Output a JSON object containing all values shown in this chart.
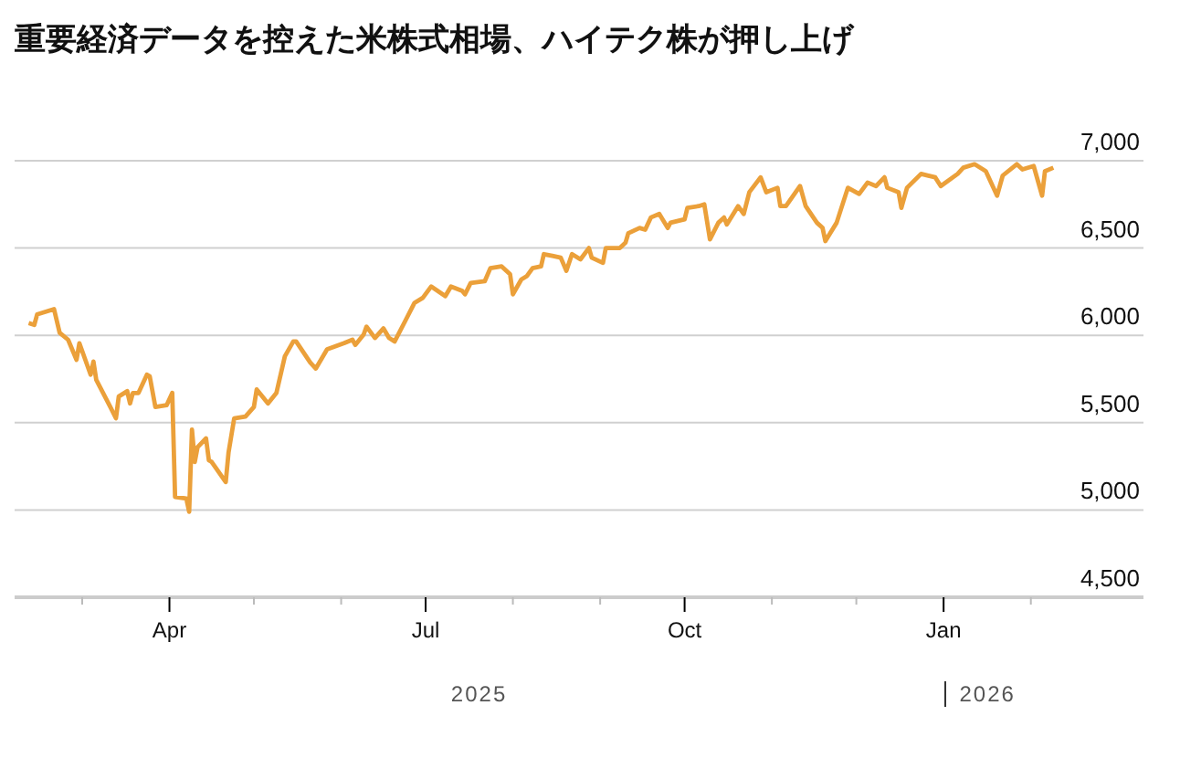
{
  "chart_data": {
    "type": "line",
    "title": "重要経済データを控えた米株式相場、ハイテク株が押し上げ",
    "x": [
      "2025-02-10",
      "2025-02-12",
      "2025-02-13",
      "2025-02-19",
      "2025-02-21",
      "2025-02-24",
      "2025-02-27",
      "2025-02-28",
      "2025-03-04",
      "2025-03-05",
      "2025-03-06",
      "2025-03-11",
      "2025-03-13",
      "2025-03-14",
      "2025-03-17",
      "2025-03-18",
      "2025-03-19",
      "2025-03-21",
      "2025-03-24",
      "2025-03-25",
      "2025-03-27",
      "2025-03-31",
      "2025-04-02",
      "2025-04-03",
      "2025-04-07",
      "2025-04-08",
      "2025-04-09",
      "2025-04-10",
      "2025-04-11",
      "2025-04-14",
      "2025-04-15",
      "2025-04-16",
      "2025-04-21",
      "2025-04-22",
      "2025-04-24",
      "2025-04-28",
      "2025-05-01",
      "2025-05-02",
      "2025-05-06",
      "2025-05-09",
      "2025-05-12",
      "2025-05-15",
      "2025-05-16",
      "2025-05-21",
      "2025-05-23",
      "2025-05-27",
      "2025-06-02",
      "2025-06-05",
      "2025-06-06",
      "2025-06-09",
      "2025-06-10",
      "2025-06-13",
      "2025-06-16",
      "2025-06-18",
      "2025-06-20",
      "2025-06-24",
      "2025-06-27",
      "2025-06-30",
      "2025-07-03",
      "2025-07-08",
      "2025-07-10",
      "2025-07-14",
      "2025-07-15",
      "2025-07-17",
      "2025-07-22",
      "2025-07-24",
      "2025-07-28",
      "2025-07-31",
      "2025-08-01",
      "2025-08-04",
      "2025-08-06",
      "2025-08-08",
      "2025-08-11",
      "2025-08-12",
      "2025-08-15",
      "2025-08-18",
      "2025-08-20",
      "2025-08-22",
      "2025-08-25",
      "2025-08-28",
      "2025-08-29",
      "2025-09-02",
      "2025-09-03",
      "2025-09-08",
      "2025-09-10",
      "2025-09-11",
      "2025-09-15",
      "2025-09-17",
      "2025-09-19",
      "2025-09-22",
      "2025-09-25",
      "2025-09-26",
      "2025-10-01",
      "2025-10-02",
      "2025-10-06",
      "2025-10-08",
      "2025-10-10",
      "2025-10-13",
      "2025-10-15",
      "2025-10-16",
      "2025-10-20",
      "2025-10-22",
      "2025-10-24",
      "2025-10-28",
      "2025-10-30",
      "2025-11-03",
      "2025-11-04",
      "2025-11-06",
      "2025-11-11",
      "2025-11-13",
      "2025-11-17",
      "2025-11-19",
      "2025-11-20",
      "2025-11-24",
      "2025-11-28",
      "2025-12-02",
      "2025-12-05",
      "2025-12-08",
      "2025-12-11",
      "2025-12-12",
      "2025-12-16",
      "2025-12-17",
      "2025-12-19",
      "2025-12-24",
      "2025-12-29",
      "2025-12-31",
      "2026-01-06",
      "2026-01-08",
      "2026-01-12",
      "2026-01-15",
      "2026-01-16",
      "2026-01-20",
      "2026-01-22",
      "2026-01-27",
      "2026-01-29",
      "2026-02-02",
      "2026-02-05",
      "2026-02-06",
      "2026-02-09"
    ],
    "series": [
      {
        "color": "#eba03a",
        "values": [
          6070,
          6060,
          6120,
          6150,
          6015,
          5975,
          5860,
          5955,
          5775,
          5850,
          5745,
          5590,
          5525,
          5650,
          5680,
          5610,
          5670,
          5670,
          5775,
          5765,
          5590,
          5600,
          5670,
          5075,
          5065,
          4990,
          5460,
          5275,
          5360,
          5410,
          5285,
          5275,
          5160,
          5330,
          5525,
          5535,
          5590,
          5690,
          5610,
          5670,
          5880,
          5965,
          5965,
          5845,
          5810,
          5920,
          5955,
          5975,
          5945,
          6005,
          6050,
          5985,
          6040,
          5985,
          5965,
          6090,
          6185,
          6215,
          6280,
          6225,
          6280,
          6255,
          6235,
          6300,
          6310,
          6385,
          6395,
          6350,
          6235,
          6320,
          6340,
          6385,
          6395,
          6465,
          6455,
          6445,
          6370,
          6465,
          6435,
          6500,
          6445,
          6415,
          6500,
          6500,
          6530,
          6585,
          6615,
          6605,
          6675,
          6695,
          6615,
          6645,
          6665,
          6730,
          6740,
          6750,
          6550,
          6645,
          6675,
          6635,
          6740,
          6695,
          6820,
          6905,
          6820,
          6845,
          6740,
          6740,
          6855,
          6740,
          6645,
          6615,
          6540,
          6645,
          6845,
          6810,
          6875,
          6855,
          6905,
          6845,
          6820,
          6730,
          6845,
          6925,
          6905,
          6855,
          6925,
          6960,
          6980,
          6950,
          6940,
          6800,
          6915,
          6980,
          6950,
          6970,
          6800,
          6940,
          6960
        ]
      }
    ],
    "xlim": [
      "2025-02-05",
      "2026-03-13"
    ],
    "xticks": [
      {
        "value": "2025-03-01",
        "label": null
      },
      {
        "value": "2025-04-01",
        "label": "Apr"
      },
      {
        "value": "2025-05-01",
        "label": null
      },
      {
        "value": "2025-06-01",
        "label": null
      },
      {
        "value": "2025-07-01",
        "label": "Jul"
      },
      {
        "value": "2025-08-01",
        "label": null
      },
      {
        "value": "2025-09-01",
        "label": null
      },
      {
        "value": "2025-10-01",
        "label": "Oct"
      },
      {
        "value": "2025-11-01",
        "label": null
      },
      {
        "value": "2025-12-01",
        "label": null
      },
      {
        "value": "2026-01-01",
        "label": "Jan"
      },
      {
        "value": "2026-02-01",
        "label": null
      }
    ],
    "ylim": [
      4500,
      7000
    ],
    "yticks": [
      {
        "value": 4500,
        "label": "4,500"
      },
      {
        "value": 5000,
        "label": "5,000"
      },
      {
        "value": 5500,
        "label": "5,500"
      },
      {
        "value": 6000,
        "label": "6,000"
      },
      {
        "value": 6500,
        "label": "6,500"
      },
      {
        "value": 7000,
        "label": "7,000"
      }
    ],
    "annotations": [
      "2025",
      "2026"
    ],
    "grid": "y",
    "marker": "none",
    "line_style": "solid"
  }
}
